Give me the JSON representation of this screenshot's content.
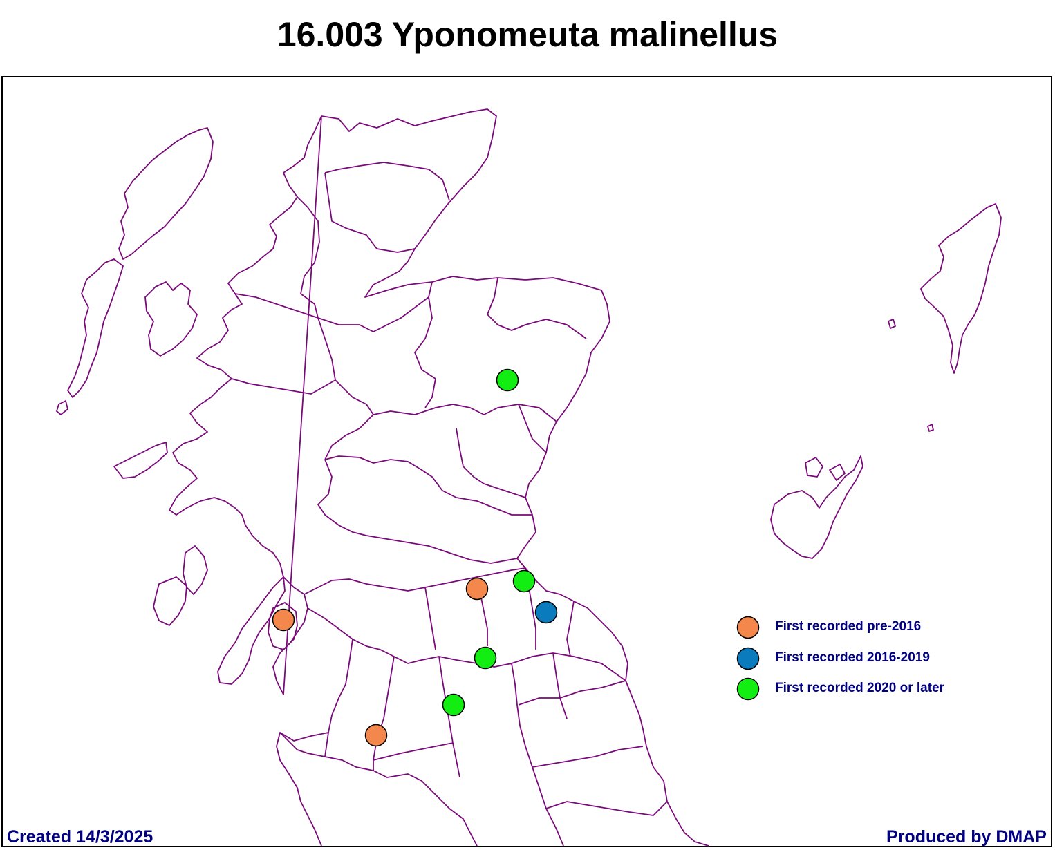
{
  "title": "16.003 Yponomeuta malinellus",
  "colors": {
    "boundary": "#7a0a7a",
    "text_blue": "#000080",
    "pre_2016": "#f4874b",
    "y2016_2019": "#0a7bbd",
    "y2020_later": "#12ee12"
  },
  "legend": [
    {
      "label": "First recorded pre-2016",
      "category": "pre_2016"
    },
    {
      "label": "First recorded 2016-2019",
      "category": "y2016_2019"
    },
    {
      "label": "First recorded 2020 or later",
      "category": "y2020_later"
    }
  ],
  "records": [
    {
      "category": "y2020_later"
    },
    {
      "category": "pre_2016"
    },
    {
      "category": "y2020_later"
    },
    {
      "category": "y2016_2019"
    },
    {
      "category": "pre_2016"
    },
    {
      "category": "y2020_later"
    },
    {
      "category": "y2020_later"
    },
    {
      "category": "pre_2016"
    }
  ],
  "footer": {
    "created": "Created 14/3/2025",
    "produced": "Produced by DMAP"
  }
}
